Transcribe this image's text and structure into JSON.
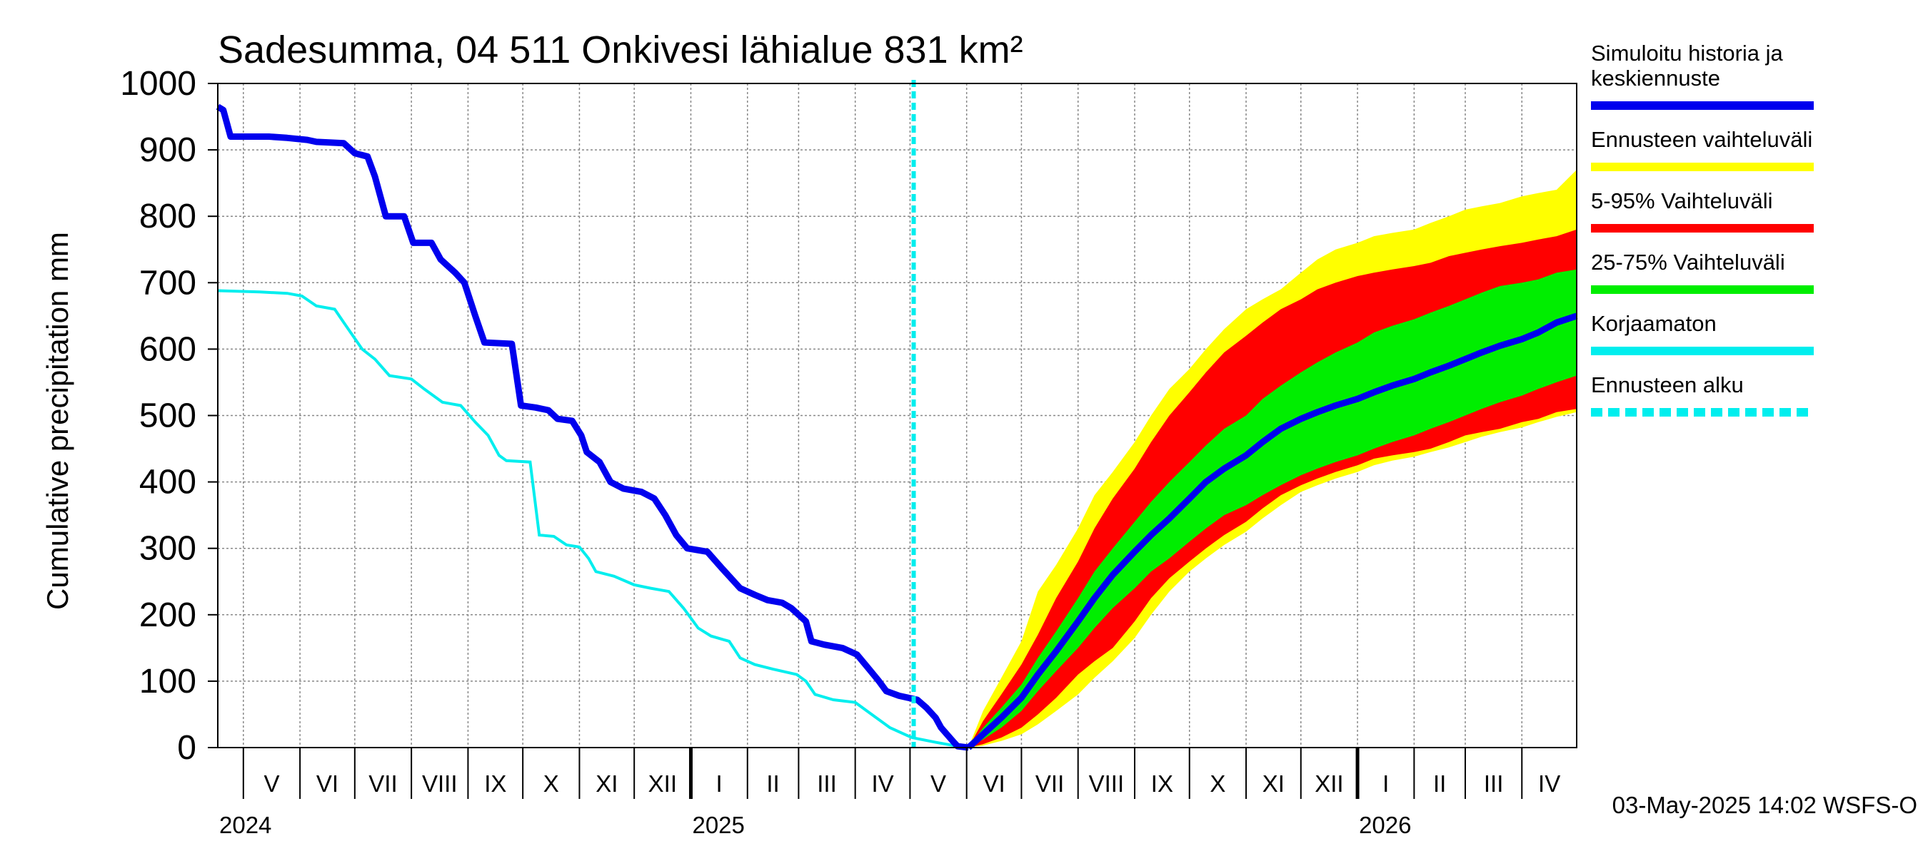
{
  "chart_data": {
    "type": "area",
    "title": "Sadesumma, 04 511 Onkivesi lähialue 831 km²",
    "ylabel": "Cumulative precipitation   mm",
    "ylim": [
      0,
      1000
    ],
    "y_ticks": [
      0,
      100,
      200,
      300,
      400,
      500,
      600,
      700,
      800,
      900,
      1000
    ],
    "x_range": [
      "2024-04-17",
      "2026-05-01"
    ],
    "forecast_start": "2025-05-03",
    "grid": true,
    "month_labels": [
      {
        "label": "V",
        "start": "2024-05-01"
      },
      {
        "label": "VI",
        "start": "2024-06-01"
      },
      {
        "label": "VII",
        "start": "2024-07-01"
      },
      {
        "label": "VIII",
        "start": "2024-08-01"
      },
      {
        "label": "IX",
        "start": "2024-09-01"
      },
      {
        "label": "X",
        "start": "2024-10-01"
      },
      {
        "label": "XI",
        "start": "2024-11-01"
      },
      {
        "label": "XII",
        "start": "2024-12-01"
      },
      {
        "label": "I",
        "start": "2025-01-01"
      },
      {
        "label": "II",
        "start": "2025-02-01"
      },
      {
        "label": "III",
        "start": "2025-03-01"
      },
      {
        "label": "IV",
        "start": "2025-04-01"
      },
      {
        "label": "V",
        "start": "2025-05-01"
      },
      {
        "label": "VI",
        "start": "2025-06-01"
      },
      {
        "label": "VII",
        "start": "2025-07-01"
      },
      {
        "label": "VIII",
        "start": "2025-08-01"
      },
      {
        "label": "IX",
        "start": "2025-09-01"
      },
      {
        "label": "X",
        "start": "2025-10-01"
      },
      {
        "label": "XI",
        "start": "2025-11-01"
      },
      {
        "label": "XII",
        "start": "2025-12-01"
      },
      {
        "label": "I",
        "start": "2026-01-01"
      },
      {
        "label": "II",
        "start": "2026-02-01"
      },
      {
        "label": "III",
        "start": "2026-03-01"
      },
      {
        "label": "IV",
        "start": "2026-04-01"
      }
    ],
    "year_labels": [
      {
        "label": "2024",
        "date": "2024-04-17"
      },
      {
        "label": "2025",
        "date": "2025-01-01"
      },
      {
        "label": "2026",
        "date": "2026-01-01"
      }
    ],
    "series": [
      {
        "name": "Simuloitu historia ja keskiennuste",
        "color": "#0000ee",
        "points": [
          [
            "2024-04-17",
            965
          ],
          [
            "2024-04-20",
            960
          ],
          [
            "2024-04-24",
            920
          ],
          [
            "2024-05-15",
            920
          ],
          [
            "2024-05-25",
            918
          ],
          [
            "2024-06-05",
            915
          ],
          [
            "2024-06-10",
            912
          ],
          [
            "2024-06-25",
            910
          ],
          [
            "2024-07-01",
            895
          ],
          [
            "2024-07-08",
            890
          ],
          [
            "2024-07-12",
            860
          ],
          [
            "2024-07-18",
            800
          ],
          [
            "2024-07-28",
            800
          ],
          [
            "2024-08-02",
            760
          ],
          [
            "2024-08-12",
            760
          ],
          [
            "2024-08-17",
            735
          ],
          [
            "2024-08-25",
            715
          ],
          [
            "2024-08-30",
            700
          ],
          [
            "2024-09-05",
            650
          ],
          [
            "2024-09-10",
            610
          ],
          [
            "2024-09-25",
            608
          ],
          [
            "2024-09-30",
            515
          ],
          [
            "2024-10-08",
            512
          ],
          [
            "2024-10-15",
            508
          ],
          [
            "2024-10-20",
            495
          ],
          [
            "2024-10-28",
            492
          ],
          [
            "2024-11-02",
            470
          ],
          [
            "2024-11-05",
            445
          ],
          [
            "2024-11-12",
            430
          ],
          [
            "2024-11-18",
            400
          ],
          [
            "2024-11-25",
            390
          ],
          [
            "2024-12-05",
            385
          ],
          [
            "2024-12-12",
            375
          ],
          [
            "2024-12-18",
            350
          ],
          [
            "2024-12-24",
            320
          ],
          [
            "2024-12-30",
            300
          ],
          [
            "2025-01-10",
            295
          ],
          [
            "2025-01-18",
            270
          ],
          [
            "2025-01-28",
            240
          ],
          [
            "2025-02-05",
            230
          ],
          [
            "2025-02-12",
            222
          ],
          [
            "2025-02-20",
            218
          ],
          [
            "2025-02-25",
            210
          ],
          [
            "2025-03-05",
            190
          ],
          [
            "2025-03-08",
            160
          ],
          [
            "2025-03-15",
            155
          ],
          [
            "2025-03-25",
            150
          ],
          [
            "2025-04-02",
            140
          ],
          [
            "2025-04-08",
            120
          ],
          [
            "2025-04-14",
            100
          ],
          [
            "2025-04-18",
            85
          ],
          [
            "2025-04-25",
            78
          ],
          [
            "2025-05-05",
            72
          ],
          [
            "2025-05-10",
            60
          ],
          [
            "2025-05-15",
            45
          ],
          [
            "2025-05-18",
            30
          ],
          [
            "2025-05-25",
            8
          ],
          [
            "2025-05-27",
            2
          ],
          [
            "2025-06-02",
            0
          ]
        ]
      },
      {
        "name": "Korjaamaton",
        "color": "#00eeee",
        "points": [
          [
            "2024-04-17",
            688
          ],
          [
            "2024-05-10",
            686
          ],
          [
            "2024-05-25",
            684
          ],
          [
            "2024-06-02",
            680
          ],
          [
            "2024-06-10",
            665
          ],
          [
            "2024-06-20",
            660
          ],
          [
            "2024-06-25",
            640
          ],
          [
            "2024-07-05",
            600
          ],
          [
            "2024-07-12",
            585
          ],
          [
            "2024-07-20",
            560
          ],
          [
            "2024-08-01",
            555
          ],
          [
            "2024-08-08",
            540
          ],
          [
            "2024-08-18",
            520
          ],
          [
            "2024-08-28",
            515
          ],
          [
            "2024-09-05",
            490
          ],
          [
            "2024-09-12",
            470
          ],
          [
            "2024-09-18",
            440
          ],
          [
            "2024-09-22",
            432
          ],
          [
            "2024-10-05",
            430
          ],
          [
            "2024-10-10",
            320
          ],
          [
            "2024-10-18",
            318
          ],
          [
            "2024-10-25",
            305
          ],
          [
            "2024-11-01",
            302
          ],
          [
            "2024-11-06",
            285
          ],
          [
            "2024-11-10",
            265
          ],
          [
            "2024-11-20",
            258
          ],
          [
            "2024-12-01",
            245
          ],
          [
            "2024-12-10",
            240
          ],
          [
            "2024-12-20",
            235
          ],
          [
            "2024-12-28",
            210
          ],
          [
            "2025-01-05",
            180
          ],
          [
            "2025-01-12",
            168
          ],
          [
            "2025-01-22",
            160
          ],
          [
            "2025-01-28",
            135
          ],
          [
            "2025-02-05",
            125
          ],
          [
            "2025-02-15",
            118
          ],
          [
            "2025-02-28",
            110
          ],
          [
            "2025-03-05",
            100
          ],
          [
            "2025-03-10",
            80
          ],
          [
            "2025-03-20",
            72
          ],
          [
            "2025-04-01",
            68
          ],
          [
            "2025-04-10",
            50
          ],
          [
            "2025-04-20",
            30
          ],
          [
            "2025-05-02",
            15
          ],
          [
            "2025-05-15",
            8
          ],
          [
            "2025-05-25",
            3
          ],
          [
            "2025-06-02",
            0
          ]
        ]
      }
    ],
    "forecast": {
      "dates": [
        "2025-06-02",
        "2025-06-10",
        "2025-06-20",
        "2025-07-01",
        "2025-07-10",
        "2025-07-20",
        "2025-08-01",
        "2025-08-10",
        "2025-08-20",
        "2025-09-01",
        "2025-09-10",
        "2025-09-20",
        "2025-10-01",
        "2025-10-10",
        "2025-10-20",
        "2025-11-01",
        "2025-11-10",
        "2025-11-20",
        "2025-12-01",
        "2025-12-10",
        "2025-12-20",
        "2026-01-01",
        "2026-01-10",
        "2026-01-20",
        "2026-02-01",
        "2026-02-10",
        "2026-02-20",
        "2026-03-01",
        "2026-03-10",
        "2026-03-20",
        "2026-04-01",
        "2026-04-10",
        "2026-04-20",
        "2026-05-01"
      ],
      "median": [
        0,
        20,
        45,
        75,
        110,
        145,
        190,
        225,
        260,
        295,
        320,
        345,
        375,
        400,
        420,
        440,
        460,
        480,
        495,
        505,
        515,
        525,
        535,
        545,
        555,
        565,
        575,
        585,
        595,
        605,
        615,
        625,
        640,
        650
      ],
      "p25": [
        0,
        12,
        30,
        55,
        85,
        115,
        150,
        180,
        210,
        240,
        265,
        285,
        310,
        330,
        350,
        365,
        380,
        395,
        410,
        420,
        430,
        440,
        450,
        460,
        470,
        480,
        490,
        500,
        510,
        520,
        530,
        540,
        550,
        560
      ],
      "p75": [
        0,
        30,
        60,
        95,
        135,
        175,
        225,
        265,
        300,
        340,
        370,
        400,
        430,
        455,
        480,
        500,
        525,
        545,
        565,
        580,
        595,
        610,
        625,
        635,
        645,
        655,
        665,
        675,
        685,
        695,
        700,
        705,
        715,
        720
      ],
      "p5": [
        0,
        5,
        15,
        30,
        50,
        75,
        110,
        130,
        150,
        190,
        225,
        255,
        280,
        300,
        320,
        340,
        360,
        380,
        395,
        405,
        415,
        425,
        435,
        440,
        445,
        450,
        460,
        470,
        475,
        480,
        490,
        495,
        505,
        510
      ],
      "p95": [
        0,
        40,
        80,
        125,
        170,
        225,
        280,
        330,
        375,
        420,
        460,
        500,
        535,
        565,
        595,
        620,
        640,
        660,
        675,
        690,
        700,
        710,
        715,
        720,
        725,
        730,
        740,
        745,
        750,
        755,
        760,
        765,
        770,
        780
      ],
      "min": [
        0,
        3,
        10,
        20,
        35,
        55,
        80,
        105,
        130,
        165,
        200,
        235,
        265,
        285,
        305,
        325,
        345,
        365,
        385,
        395,
        405,
        415,
        425,
        432,
        438,
        445,
        452,
        460,
        468,
        475,
        482,
        490,
        498,
        505
      ],
      "max": [
        0,
        55,
        105,
        160,
        235,
        275,
        330,
        380,
        415,
        460,
        500,
        540,
        570,
        600,
        630,
        660,
        675,
        690,
        715,
        735,
        750,
        760,
        770,
        775,
        780,
        790,
        800,
        810,
        815,
        820,
        830,
        835,
        840,
        870
      ]
    },
    "legend": {
      "placement": "right",
      "items": [
        {
          "label": "Simuloitu historia ja keskiennuste",
          "color": "#0000ee",
          "style": "solid"
        },
        {
          "label": "Ennusteen vaihteluväli",
          "color": "#ffff00",
          "style": "solid"
        },
        {
          "label": "5-95% Vaihteluväli",
          "color": "#ff0000",
          "style": "solid"
        },
        {
          "label": "25-75% Vaihteluväli",
          "color": "#00ee00",
          "style": "solid"
        },
        {
          "label": "Korjaamaton",
          "color": "#00eeee",
          "style": "solid"
        },
        {
          "label": "Ennusteen alku",
          "color": "#00eeee",
          "style": "dashed"
        }
      ]
    },
    "footer": "03-May-2025 14:02 WSFS-O"
  }
}
